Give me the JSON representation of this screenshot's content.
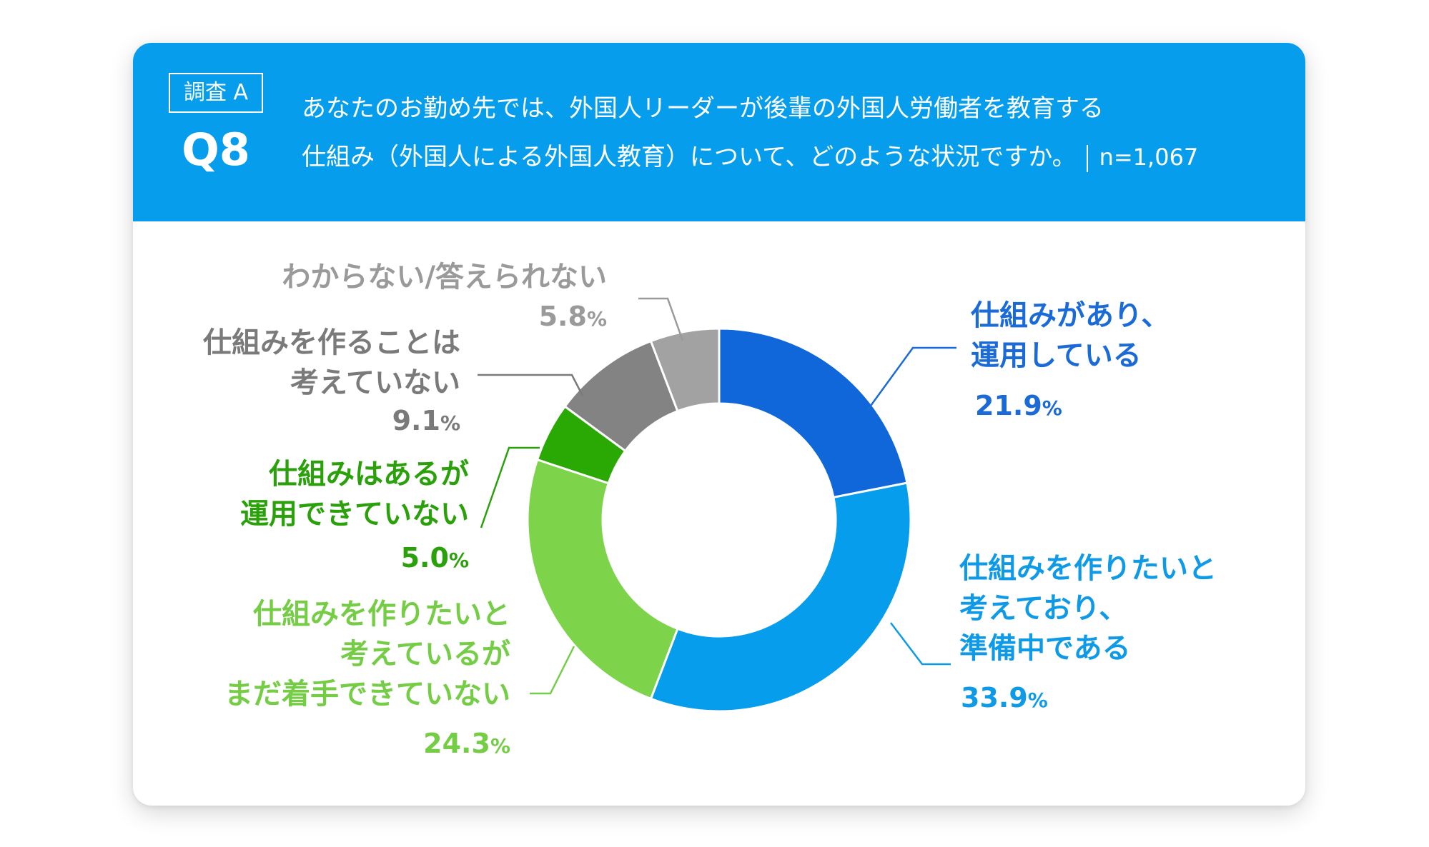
{
  "header": {
    "survey_label": "調査 A",
    "question_number": "Q8",
    "question_line1": "あなたのお勤め先では、外国人リーダーが後輩の外国人労働者を教育する",
    "question_line2": "仕組み（外国人による外国人教育）について、どのような状況ですか。",
    "sample_size": "n=1,067",
    "background_color": "#079ded"
  },
  "chart_data": {
    "type": "pie",
    "donut": true,
    "categories": [
      "仕組みがあり、運用している",
      "仕組みを作りたいと考えており、準備中である",
      "仕組みを作りたいと考えているがまだ着手できていない",
      "仕組みはあるが運用できていない",
      "仕組みを作ることは考えていない",
      "わからない/答えられない"
    ],
    "values": [
      21.9,
      33.9,
      24.3,
      5.0,
      9.1,
      5.8
    ],
    "colors": [
      "#0f67d9",
      "#079ded",
      "#7dd44a",
      "#2aa804",
      "#838383",
      "#a2a2a2"
    ],
    "label_colors": [
      "#1a6ad8",
      "#0f9ae8",
      "#74cd45",
      "#2aa10a",
      "#7a7a7a",
      "#9a9a9a"
    ],
    "labels": [
      {
        "lines": [
          "仕組みがあり、",
          "運用している"
        ],
        "value": "21.9"
      },
      {
        "lines": [
          "仕組みを作りたいと",
          "考えており、",
          "準備中である"
        ],
        "value": "33.9"
      },
      {
        "lines": [
          "仕組みを作りたいと",
          "考えているが",
          "まだ着手できていない"
        ],
        "value": "24.3"
      },
      {
        "lines": [
          "仕組みはあるが",
          "運用できていない"
        ],
        "value": "5.0"
      },
      {
        "lines": [
          "仕組みを作ることは",
          "考えていない"
        ],
        "value": "9.1"
      },
      {
        "lines": [
          "わからない/答えられない"
        ],
        "value": "5.8"
      }
    ],
    "unit": "%"
  }
}
